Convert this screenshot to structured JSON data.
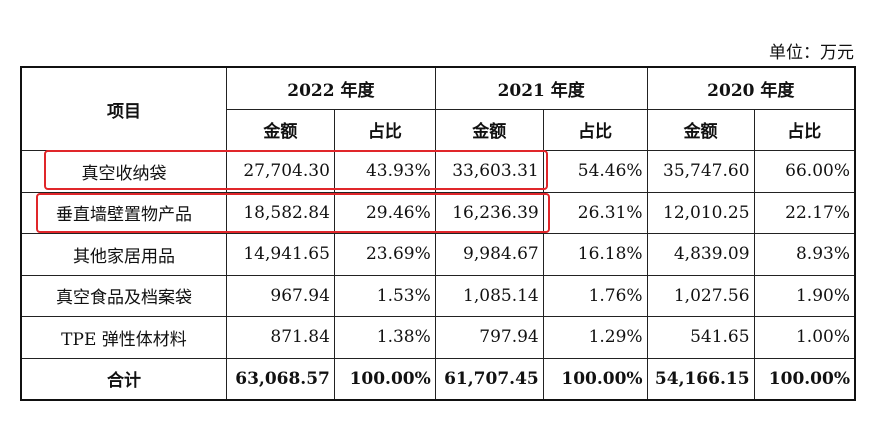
{
  "unit": "单位：万元",
  "header": {
    "item": "项目",
    "years": [
      "2022 年度",
      "2021 年度",
      "2020 年度"
    ],
    "amount": "金额",
    "ratio": "占比"
  },
  "rows": [
    {
      "name": "真空收纳袋",
      "values": [
        "27,704.30",
        "43.93%",
        "33,603.31",
        "54.46%",
        "35,747.60",
        "66.00%"
      ]
    },
    {
      "name": "垂直墙壁置物产品",
      "values": [
        "18,582.84",
        "29.46%",
        "16,236.39",
        "26.31%",
        "12,010.25",
        "22.17%"
      ]
    },
    {
      "name": "其他家居用品",
      "values": [
        "14,941.65",
        "23.69%",
        "9,984.67",
        "16.18%",
        "4,839.09",
        "8.93%"
      ]
    },
    {
      "name": "真空食品及档案袋",
      "values": [
        "967.94",
        "1.53%",
        "1,085.14",
        "1.76%",
        "1,027.56",
        "1.90%"
      ]
    },
    {
      "name": "TPE 弹性体材料",
      "values": [
        "871.84",
        "1.38%",
        "797.94",
        "1.29%",
        "541.65",
        "1.00%"
      ]
    }
  ],
  "total": {
    "name": "合计",
    "values": [
      "63,068.57",
      "100.00%",
      "61,707.45",
      "100.00%",
      "54,166.15",
      "100.00%"
    ]
  },
  "colors": {
    "highlight": "#e0262a"
  }
}
